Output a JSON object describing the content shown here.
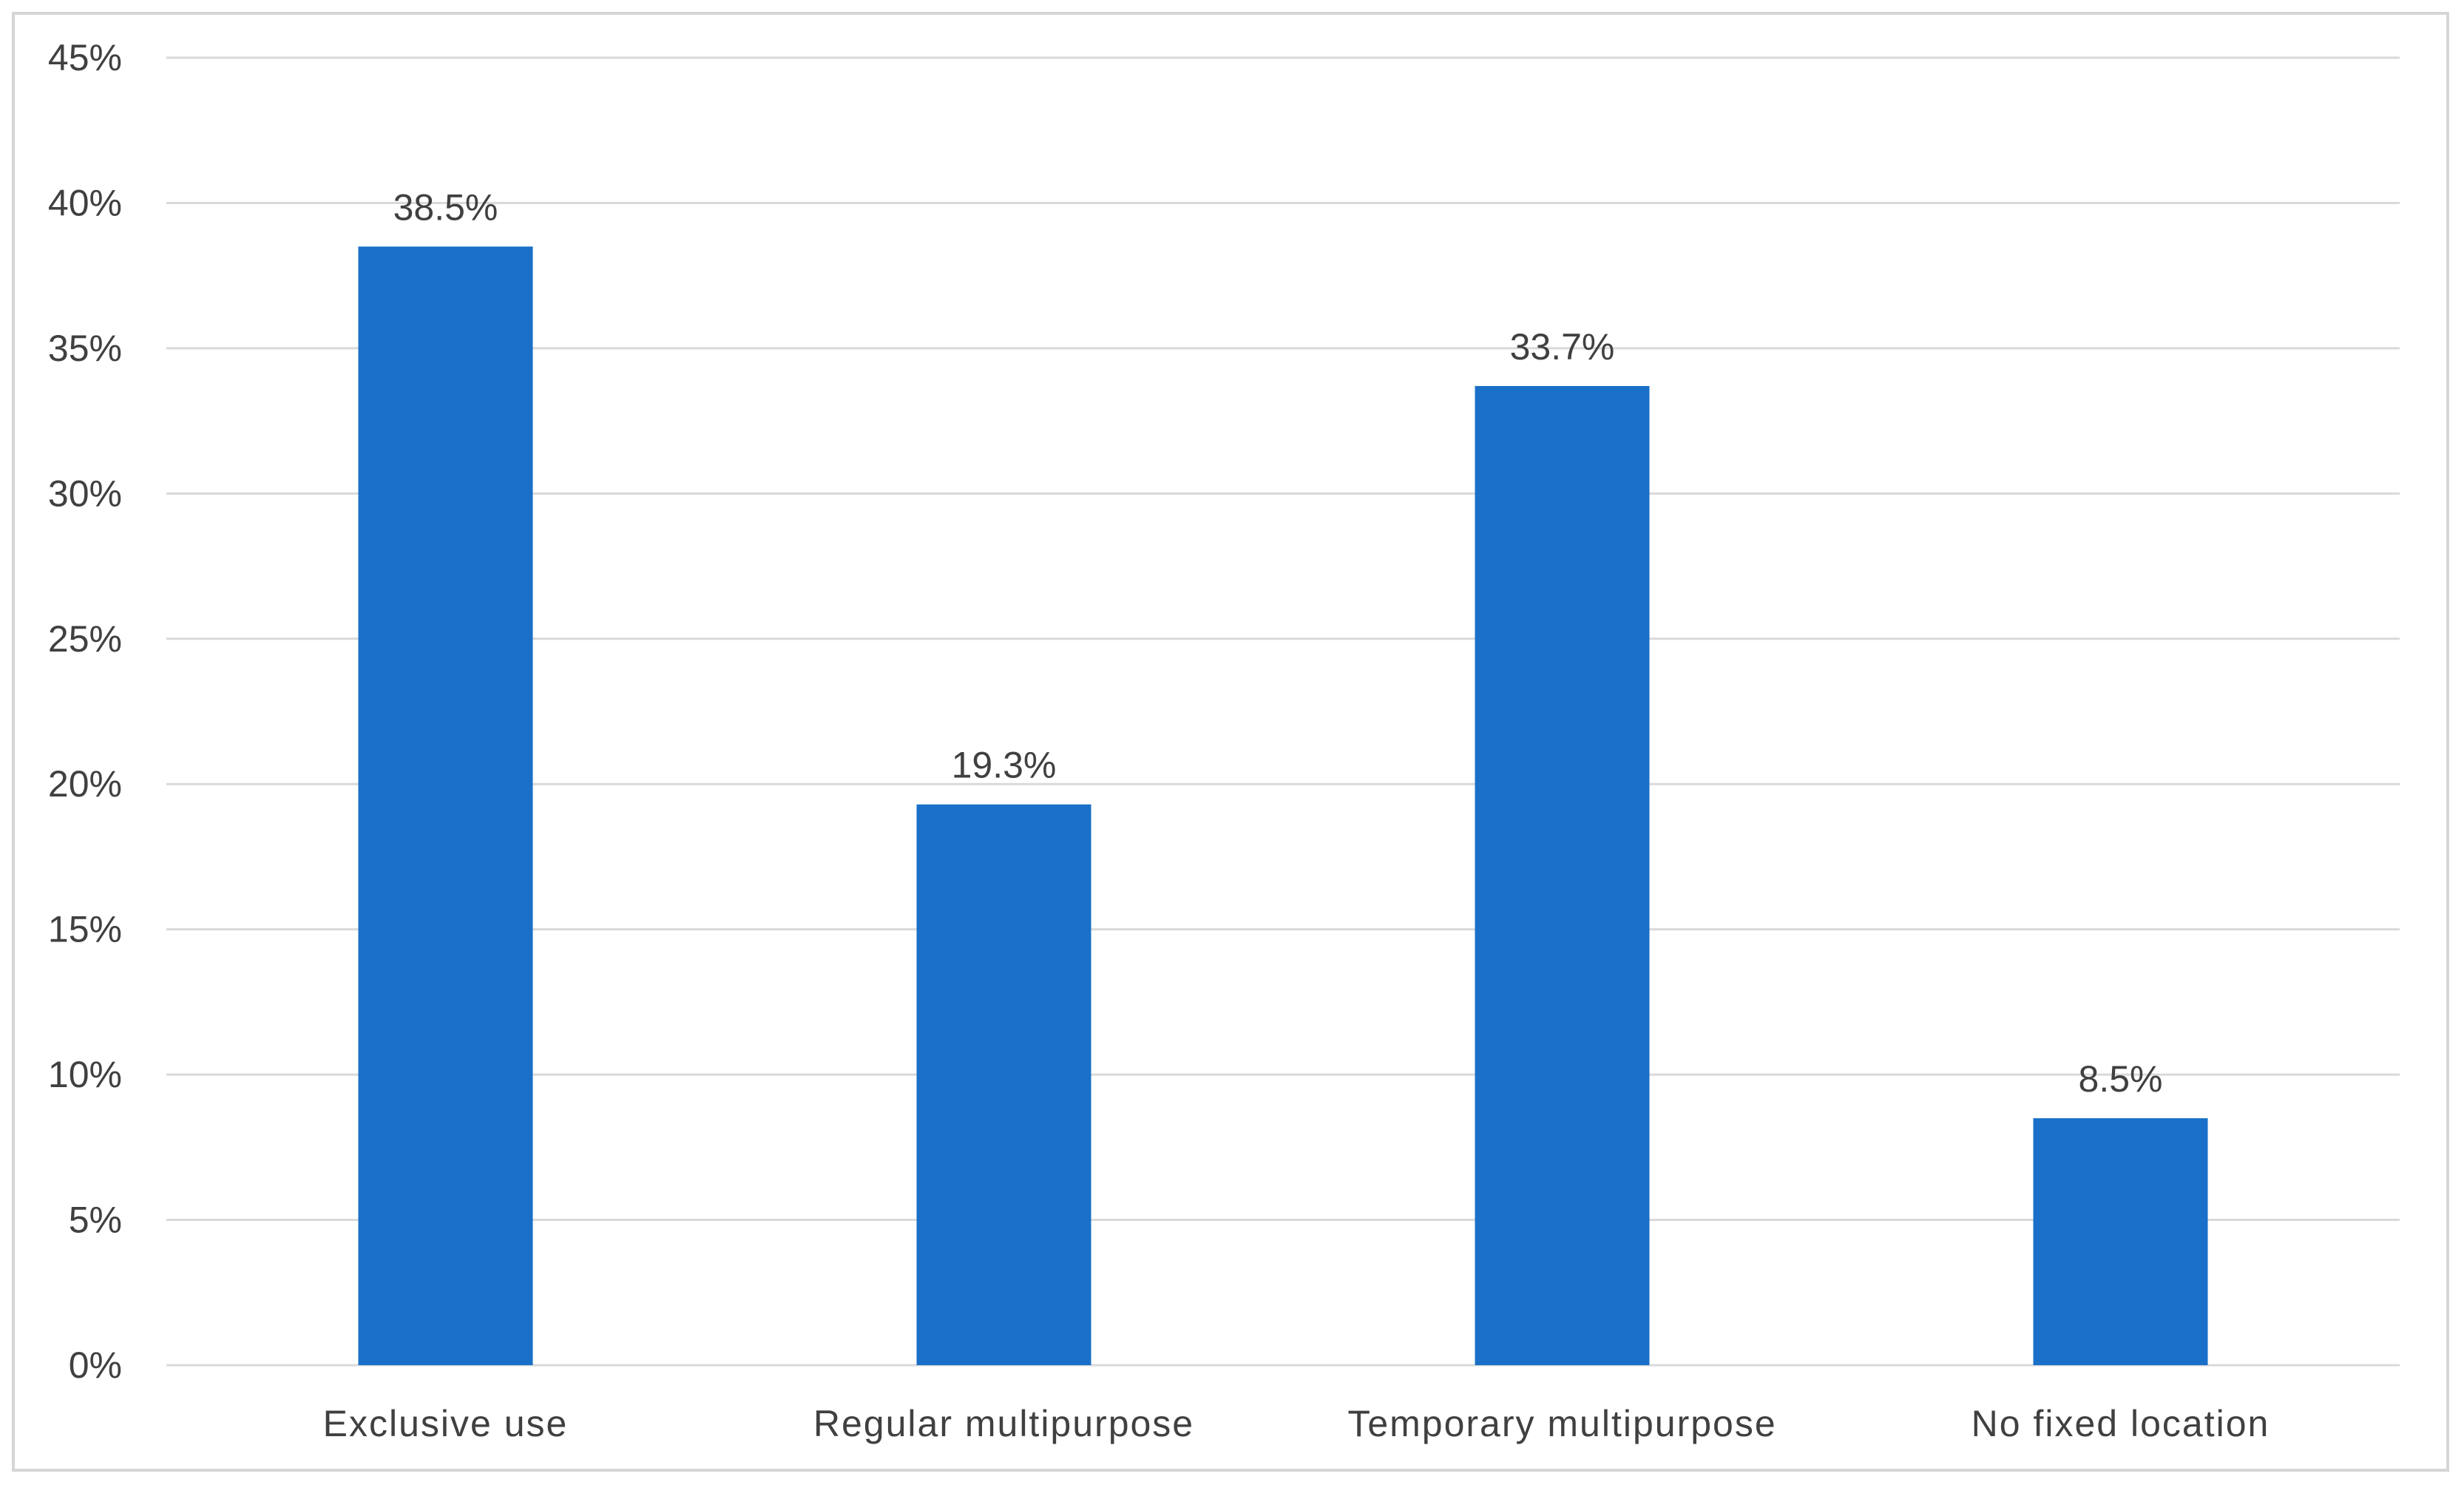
{
  "chart_data": {
    "type": "bar",
    "categories": [
      "Exclusive use",
      "Regular multipurpose",
      "Temporary multipurpose",
      "No fixed location"
    ],
    "values": [
      38.5,
      19.3,
      33.7,
      8.5
    ],
    "data_labels": [
      "38.5%",
      "19.3%",
      "33.7%",
      "8.5%"
    ],
    "y_ticks": [
      0,
      5,
      10,
      15,
      20,
      25,
      30,
      35,
      40,
      45
    ],
    "y_tick_labels": [
      "0%",
      "5%",
      "10%",
      "15%",
      "20%",
      "25%",
      "30%",
      "35%",
      "40%",
      "45%"
    ],
    "ylim": [
      0,
      45
    ],
    "grid": true,
    "legend": "none",
    "colors": {
      "bar": "#1a70c8",
      "grid": "#d9d9d9",
      "text": "#404040"
    }
  }
}
